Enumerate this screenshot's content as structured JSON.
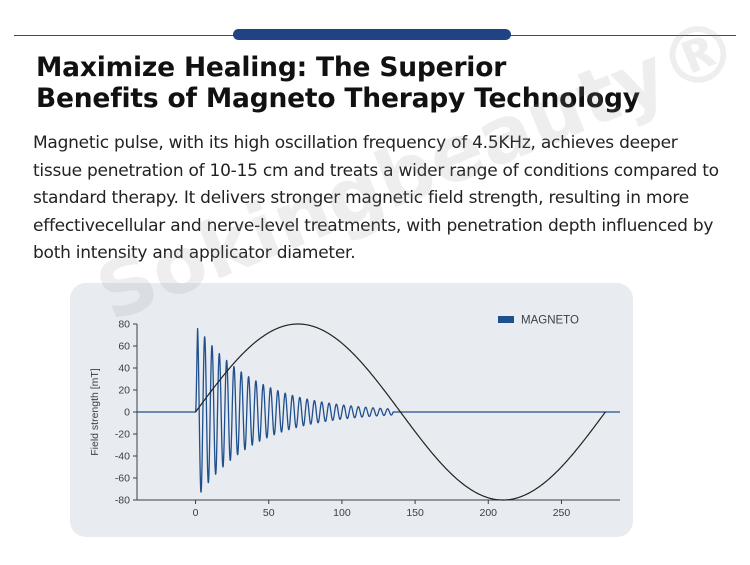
{
  "header": {
    "headline_line1": "Maximize Healing: The Superior",
    "headline_line2": "Benefits of Magneto Therapy Technology"
  },
  "intro_text": "Magnetic pulse, with its high oscillation frequency of 4.5KHz, achieves deeper tissue penetration of 10-15 cm and treats a wider range of conditions compared to standard  therapy. It delivers stronger magnetic field strength, resulting in more effectivecellular and nerve-level treatments, with penetration depth influenced by both intensity and applicator diameter.",
  "watermark": "Sokingbeauty®",
  "colors": {
    "accent": "#1f4383",
    "series": "#1f4f8c",
    "card": "#e8ebf0"
  },
  "chart_data": {
    "type": "line",
    "title": "",
    "xlabel": "",
    "ylabel": "Field strength [mT]",
    "xlim": [
      -40,
      290
    ],
    "ylim": [
      -80,
      80
    ],
    "x_ticks": [
      0,
      50,
      100,
      150,
      200,
      250
    ],
    "y_ticks": [
      80,
      60,
      40,
      20,
      0,
      -20,
      -40,
      -60,
      -80
    ],
    "grid": false,
    "legend": {
      "position": "top-right",
      "entries": [
        "MAGNETO"
      ]
    },
    "series": [
      {
        "name": "MAGNETO",
        "color": "#1f4f8c",
        "kind": "damped-oscillation",
        "start_x": 0,
        "end_x": 135,
        "peak_amplitude": 80,
        "period": 5,
        "baseline_x_range": [
          -40,
          290
        ]
      },
      {
        "kind": "sine",
        "color": "#222222",
        "x": [
          0,
          70,
          140,
          210,
          280
        ],
        "y": [
          0,
          80,
          0,
          -80,
          0
        ]
      }
    ]
  }
}
